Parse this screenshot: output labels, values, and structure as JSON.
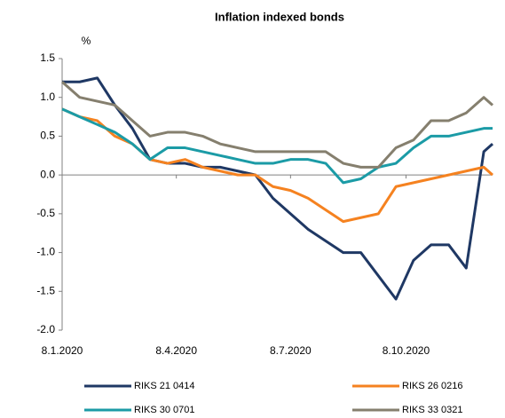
{
  "chart_data": {
    "type": "line",
    "title": "Inflation indexed bonds",
    "y_label": "%",
    "x": [
      "8.1.2020",
      "22.1.2020",
      "5.2.2020",
      "19.2.2020",
      "4.3.2020",
      "18.3.2020",
      "1.4.2020",
      "15.4.2020",
      "29.4.2020",
      "13.5.2020",
      "27.5.2020",
      "10.6.2020",
      "24.6.2020",
      "8.7.2020",
      "22.7.2020",
      "5.8.2020",
      "19.8.2020",
      "2.9.2020",
      "16.9.2020",
      "30.9.2020",
      "14.10.2020",
      "28.10.2020",
      "11.11.2020",
      "25.11.2020",
      "9.12.2020",
      "16.12.2020"
    ],
    "series": [
      {
        "name": "RIKS 21 0414",
        "color": "#1f3864",
        "values": [
          1.2,
          1.2,
          1.25,
          0.9,
          0.6,
          0.2,
          0.15,
          0.15,
          0.1,
          0.1,
          0.05,
          0.0,
          -0.3,
          -0.5,
          -0.7,
          -0.85,
          -1.0,
          -1.0,
          -1.3,
          -1.6,
          -1.1,
          -0.9,
          -0.9,
          -1.2,
          0.3,
          0.4
        ]
      },
      {
        "name": "RIKS 26 0216",
        "color": "#f58220",
        "values": [
          0.85,
          0.75,
          0.7,
          0.5,
          0.4,
          0.2,
          0.15,
          0.2,
          0.1,
          0.05,
          0.0,
          0.0,
          -0.15,
          -0.2,
          -0.3,
          -0.45,
          -0.6,
          -0.55,
          -0.5,
          -0.15,
          -0.1,
          -0.05,
          0.0,
          0.05,
          0.1,
          0.0
        ]
      },
      {
        "name": "RIKS 30 0701",
        "color": "#1b9ba6",
        "values": [
          0.85,
          0.75,
          0.65,
          0.55,
          0.4,
          0.2,
          0.35,
          0.35,
          0.3,
          0.25,
          0.2,
          0.15,
          0.15,
          0.2,
          0.2,
          0.15,
          -0.1,
          -0.05,
          0.1,
          0.15,
          0.35,
          0.5,
          0.5,
          0.55,
          0.6,
          0.6
        ]
      },
      {
        "name": "RIKS 33 0321",
        "color": "#857f6e",
        "values": [
          1.2,
          1.0,
          0.95,
          0.9,
          0.7,
          0.5,
          0.55,
          0.55,
          0.5,
          0.4,
          0.35,
          0.3,
          0.3,
          0.3,
          0.3,
          0.3,
          0.15,
          0.1,
          0.1,
          0.35,
          0.45,
          0.7,
          0.7,
          0.8,
          1.0,
          0.9
        ]
      }
    ],
    "xlim": [
      "8.1.2020",
      "16.12.2020"
    ],
    "xticks": [
      "8.1.2020",
      "8.4.2020",
      "8.7.2020",
      "8.10.2020"
    ],
    "ylim": [
      -2,
      1.5
    ],
    "yticks": [
      1.5,
      {
        "value": 1,
        "label": "1.0"
      },
      0.5,
      {
        "value": 0,
        "label": "0.0"
      },
      -0.5,
      {
        "value": -1,
        "label": "-1.0"
      },
      -1.5,
      {
        "value": -2,
        "label": "-2.0"
      }
    ],
    "grid": false
  }
}
